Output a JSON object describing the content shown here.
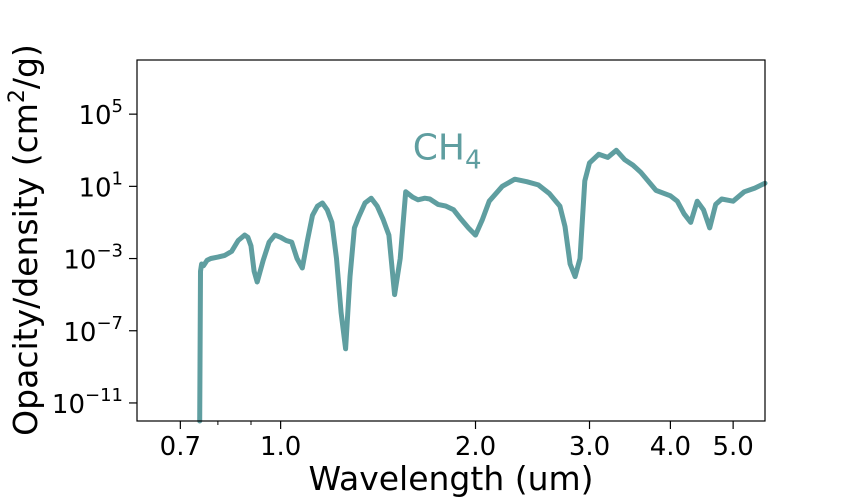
{
  "chart_data": {
    "type": "line",
    "title": "",
    "xlabel": "Wavelength  (um)",
    "ylabel_parts": {
      "before": "Opacity/density  (cm",
      "sup": "2",
      "after": "/g)"
    },
    "annotation": {
      "base": "CH",
      "sub": "4",
      "x": 1.6,
      "y": 300
    },
    "x_scale": "log",
    "y_scale": "log",
    "xlim": [
      0.6,
      5.6
    ],
    "ylim": [
      1e-12,
      100000000.0
    ],
    "x_major_ticks": [
      {
        "value": 0.7,
        "label": "0.7"
      },
      {
        "value": 1.0,
        "label": "1.0"
      },
      {
        "value": 2.0,
        "label": "2.0"
      },
      {
        "value": 3.0,
        "label": "3.0"
      },
      {
        "value": 4.0,
        "label": "4.0"
      },
      {
        "value": 5.0,
        "label": "5.0"
      }
    ],
    "x_minor_ticks": [
      0.8,
      0.9
    ],
    "y_ticks": [
      {
        "value": 100000.0,
        "base": "10",
        "exp": "5"
      },
      {
        "value": 10,
        "base": "10",
        "exp": "1"
      },
      {
        "value": 0.001,
        "base": "10",
        "exp": "−3"
      },
      {
        "value": 1e-07,
        "base": "10",
        "exp": "−7"
      },
      {
        "value": 1e-11,
        "base": "10",
        "exp": "−11"
      }
    ],
    "grid": false,
    "legend": "none",
    "series": [
      {
        "color": "#5f9ea0",
        "x": [
          0.75,
          0.752,
          0.755,
          0.76,
          0.77,
          0.78,
          0.8,
          0.82,
          0.84,
          0.86,
          0.88,
          0.89,
          0.9,
          0.91,
          0.92,
          0.94,
          0.96,
          0.98,
          1.0,
          1.02,
          1.04,
          1.06,
          1.08,
          1.1,
          1.12,
          1.14,
          1.16,
          1.18,
          1.2,
          1.22,
          1.24,
          1.26,
          1.28,
          1.3,
          1.32,
          1.35,
          1.38,
          1.41,
          1.44,
          1.47,
          1.5,
          1.53,
          1.56,
          1.6,
          1.63,
          1.67,
          1.7,
          1.75,
          1.8,
          1.85,
          1.9,
          1.95,
          2.0,
          2.05,
          2.1,
          2.2,
          2.3,
          2.4,
          2.5,
          2.6,
          2.7,
          2.75,
          2.8,
          2.85,
          2.9,
          2.95,
          3.0,
          3.1,
          3.2,
          3.3,
          3.4,
          3.5,
          3.6,
          3.8,
          4.0,
          4.1,
          4.2,
          4.3,
          4.4,
          4.5,
          4.6,
          4.7,
          4.8,
          5.0,
          5.2,
          5.4,
          5.6
        ],
        "y": [
          1e-12,
          0.0002,
          0.0005,
          0.0004,
          0.0008,
          0.001,
          0.0012,
          0.0015,
          0.0025,
          0.01,
          0.02,
          0.015,
          0.005,
          0.0002,
          5e-05,
          0.0008,
          0.008,
          0.02,
          0.015,
          0.01,
          0.008,
          0.001,
          0.0003,
          0.01,
          0.25,
          0.8,
          1.2,
          0.5,
          0.1,
          0.001,
          1e-06,
          1e-08,
          0.0001,
          0.05,
          0.2,
          1.2,
          2.2,
          0.8,
          0.15,
          0.02,
          1e-05,
          0.001,
          5.0,
          2.5,
          1.8,
          2.2,
          2.0,
          1.0,
          0.8,
          0.5,
          0.15,
          0.05,
          0.02,
          0.15,
          1.5,
          10.0,
          25.0,
          18.0,
          12.0,
          4.0,
          0.8,
          0.06,
          0.0005,
          0.0001,
          0.001,
          20.0,
          200.0,
          600.0,
          400.0,
          1000.0,
          300.0,
          150.0,
          60.0,
          6.0,
          3.0,
          1.5,
          0.3,
          0.1,
          1.5,
          0.5,
          0.05,
          1.0,
          2.0,
          1.5,
          5.0,
          8.0,
          15.0
        ]
      }
    ]
  }
}
